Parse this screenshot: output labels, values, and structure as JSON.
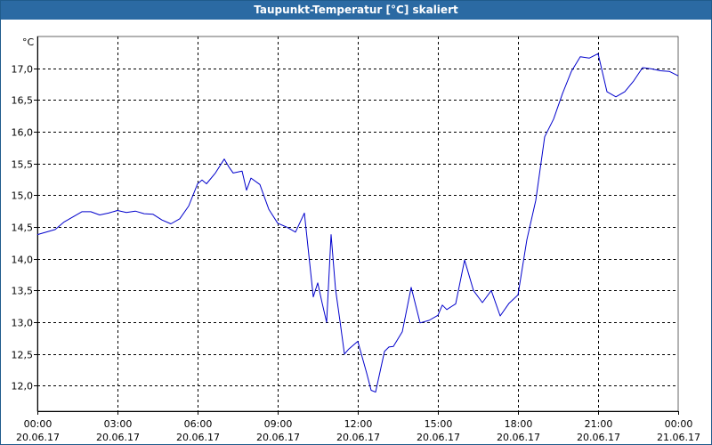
{
  "window": {
    "title": "Taupunkt-Temperatur [°C] skaliert"
  },
  "chart_data": {
    "type": "line",
    "title": "Taupunkt-Temperatur [°C] skaliert",
    "ylabel": "°C",
    "ylim": [
      11.6,
      17.5
    ],
    "y_ticks": [
      "12,0",
      "12,5",
      "13,0",
      "13,5",
      "14,0",
      "14,5",
      "15,0",
      "15,5",
      "16,0",
      "16,5",
      "17,0"
    ],
    "x_ticks": [
      {
        "time": "00:00",
        "date": "20.06.17"
      },
      {
        "time": "03:00",
        "date": "20.06.17"
      },
      {
        "time": "06:00",
        "date": "20.06.17"
      },
      {
        "time": "09:00",
        "date": "20.06.17"
      },
      {
        "time": "12:00",
        "date": "20.06.17"
      },
      {
        "time": "15:00",
        "date": "20.06.17"
      },
      {
        "time": "18:00",
        "date": "20.06.17"
      },
      {
        "time": "21:00",
        "date": "20.06.17"
      },
      {
        "time": "00:00",
        "date": "21.06.17"
      }
    ],
    "grid": true,
    "line_color": "#0000cc",
    "series": [
      {
        "x": [
          "00:00",
          "00:40",
          "01:00",
          "01:20",
          "01:40",
          "02:00",
          "02:20",
          "02:40",
          "03:00",
          "03:20",
          "03:40",
          "04:00",
          "04:20",
          "04:40",
          "05:00",
          "05:20",
          "05:40",
          "06:00",
          "06:10",
          "06:20",
          "06:40",
          "07:00",
          "07:10",
          "07:20",
          "07:40",
          "07:50",
          "08:00",
          "08:20",
          "08:40",
          "09:00",
          "09:20",
          "09:40",
          "10:00",
          "10:20",
          "10:30",
          "10:40",
          "10:50",
          "11:00",
          "11:10",
          "11:20",
          "11:30",
          "11:40",
          "12:00",
          "12:20",
          "12:30",
          "12:40",
          "13:00",
          "13:10",
          "13:20",
          "13:40",
          "14:00",
          "14:20",
          "14:40",
          "15:00",
          "15:10",
          "15:20",
          "15:40",
          "16:00",
          "16:20",
          "16:40",
          "17:00",
          "17:20",
          "17:40",
          "18:00",
          "18:20",
          "18:40",
          "19:00",
          "19:20",
          "19:40",
          "20:00",
          "20:20",
          "20:40",
          "21:00",
          "21:20",
          "21:40",
          "22:00",
          "22:20",
          "22:40",
          "23:00",
          "23:20",
          "23:40",
          "24:00"
        ],
        "y": [
          14.38,
          14.46,
          14.58,
          14.66,
          14.74,
          14.74,
          14.69,
          14.72,
          14.76,
          14.73,
          14.75,
          14.71,
          14.7,
          14.61,
          14.55,
          14.63,
          14.83,
          15.18,
          15.24,
          15.18,
          15.35,
          15.57,
          15.45,
          15.35,
          15.38,
          15.08,
          15.27,
          15.17,
          14.78,
          14.56,
          14.5,
          14.42,
          14.72,
          13.4,
          13.62,
          13.3,
          13.0,
          14.38,
          13.52,
          13.02,
          12.5,
          12.58,
          12.7,
          12.2,
          11.93,
          11.9,
          12.54,
          12.61,
          12.62,
          12.85,
          13.55,
          12.99,
          13.03,
          13.11,
          13.27,
          13.2,
          13.29,
          13.98,
          13.5,
          13.31,
          13.5,
          13.1,
          13.3,
          13.43,
          14.3,
          14.92,
          15.92,
          16.2,
          16.6,
          16.95,
          17.18,
          17.16,
          17.23,
          16.63,
          16.55,
          16.63,
          16.8,
          17.01,
          16.99,
          16.96,
          16.95,
          16.88
        ]
      }
    ]
  }
}
